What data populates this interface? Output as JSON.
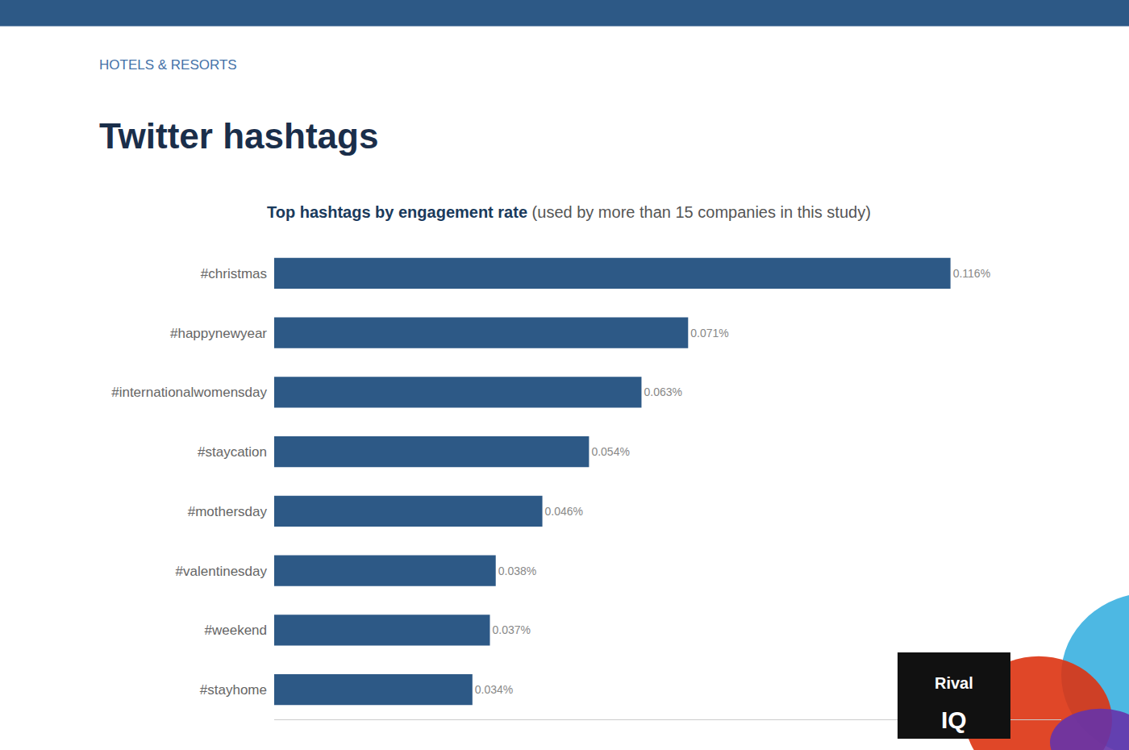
{
  "chart_data": {
    "type": "bar",
    "orientation": "horizontal",
    "title": "Twitter hashtags",
    "subtitle": "HOTELS & RESORTS",
    "annotations": [
      "Top hashtags by engagement rate",
      "(used by more than 15 companies in this study)",
      "Rival",
      "IQ"
    ],
    "categories": [
      "#christmas",
      "#happynewyear",
      "#internationalwomensday",
      "#staycation",
      "#mothersday",
      "#valentinesday",
      "#weekend",
      "#stayhome"
    ],
    "values": [
      0.116,
      0.071,
      0.063,
      0.054,
      0.046,
      0.038,
      0.037,
      0.034
    ],
    "value_labels": [
      "0.116%",
      "0.071%",
      "0.063%",
      "0.054%",
      "0.046%",
      "0.038%",
      "0.037%",
      "0.034%"
    ],
    "data_labels": true,
    "color": "#2d5986",
    "xlim": [
      0,
      0.135
    ],
    "tick_labels": "y",
    "grid": false
  }
}
